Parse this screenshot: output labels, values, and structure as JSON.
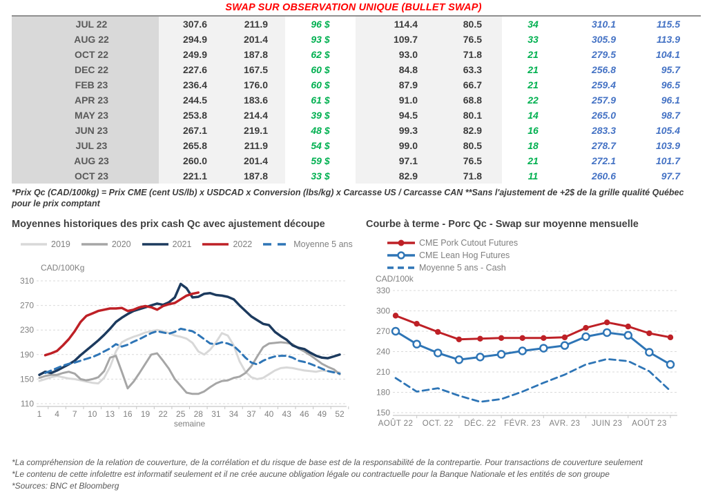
{
  "page": {
    "title": "SWAP SUR OBSERVATION UNIQUE (BULLET SWAP)"
  },
  "colors": {
    "title_red": "#FF0000",
    "green_text": "#00B050",
    "blue_text": "#4472C4",
    "label_col_bg": "#D9D9D9",
    "value_col_bg": "#F2F2F2"
  },
  "table": {
    "rows": [
      {
        "label": "JUL 22",
        "v1": "307.6",
        "v2": "211.9",
        "gain": "96 $",
        "v3": "114.4",
        "v4": "80.5",
        "count": "34",
        "b1": "310.1",
        "b2": "115.5"
      },
      {
        "label": "AUG 22",
        "v1": "294.9",
        "v2": "201.4",
        "gain": "93 $",
        "v3": "109.7",
        "v4": "76.5",
        "count": "33",
        "b1": "305.9",
        "b2": "113.9"
      },
      {
        "label": "OCT 22",
        "v1": "249.9",
        "v2": "187.8",
        "gain": "62 $",
        "v3": "93.0",
        "v4": "71.8",
        "count": "21",
        "b1": "279.5",
        "b2": "104.1"
      },
      {
        "label": "DEC 22",
        "v1": "227.6",
        "v2": "167.5",
        "gain": "60 $",
        "v3": "84.8",
        "v4": "63.3",
        "count": "21",
        "b1": "256.8",
        "b2": "95.7"
      },
      {
        "label": "FEB 23",
        "v1": "236.4",
        "v2": "176.0",
        "gain": "60 $",
        "v3": "87.9",
        "v4": "66.7",
        "count": "21",
        "b1": "259.4",
        "b2": "96.5"
      },
      {
        "label": "APR 23",
        "v1": "244.5",
        "v2": "183.6",
        "gain": "61 $",
        "v3": "91.0",
        "v4": "68.8",
        "count": "22",
        "b1": "257.9",
        "b2": "96.1"
      },
      {
        "label": "MAY 23",
        "v1": "253.8",
        "v2": "214.4",
        "gain": "39 $",
        "v3": "94.5",
        "v4": "80.1",
        "count": "14",
        "b1": "265.0",
        "b2": "98.7"
      },
      {
        "label": "JUN 23",
        "v1": "267.1",
        "v2": "219.1",
        "gain": "48 $",
        "v3": "99.3",
        "v4": "82.9",
        "count": "16",
        "b1": "283.3",
        "b2": "105.4"
      },
      {
        "label": "JUL 23",
        "v1": "265.8",
        "v2": "211.9",
        "gain": "54 $",
        "v3": "99.0",
        "v4": "80.5",
        "count": "18",
        "b1": "278.7",
        "b2": "103.9"
      },
      {
        "label": "AUG 23",
        "v1": "260.0",
        "v2": "201.4",
        "gain": "59 $",
        "v3": "97.1",
        "v4": "76.5",
        "count": "21",
        "b1": "272.1",
        "b2": "101.7"
      },
      {
        "label": "OCT 23",
        "v1": "221.1",
        "v2": "187.8",
        "gain": "33 $",
        "v3": "82.9",
        "v4": "71.8",
        "count": "11",
        "b1": "260.6",
        "b2": "97.7"
      }
    ],
    "footnote": "*Prix Qc (CAD/100kg) = Prix CME (cent US/lb) x USDCAD x Conversion (lbs/kg) x Carcasse US / Carcasse CAN **Sans l'ajustement de +2$ de la grille qualité Québec pour le prix comptant"
  },
  "chart_data": [
    {
      "type": "line",
      "title": "Moyennes historiques des prix cash Qc avec ajustement découpe",
      "ylabel": "CAD/100Kg",
      "xlabel": "semaine",
      "xlim": [
        1,
        52
      ],
      "ylim": [
        110,
        310
      ],
      "yticks": [
        110,
        150,
        190,
        230,
        270,
        310
      ],
      "x_ticks": [
        1,
        4,
        7,
        10,
        13,
        16,
        19,
        22,
        25,
        28,
        31,
        34,
        37,
        40,
        43,
        46,
        49,
        52
      ],
      "grid": "dashed-horizontal",
      "legend_position": "top",
      "series": [
        {
          "name": "2019",
          "color": "#D8D8D8",
          "style": "solid",
          "width": 3,
          "marker": "none",
          "values": [
            147,
            150,
            153,
            155,
            153,
            151,
            150,
            148,
            146,
            144,
            143,
            152,
            170,
            195,
            210,
            215,
            219,
            222,
            226,
            228,
            230,
            228,
            225,
            221,
            219,
            216,
            209,
            195,
            190,
            198,
            210,
            225,
            221,
            205,
            179,
            162,
            153,
            150,
            152,
            158,
            164,
            168,
            169,
            168,
            166,
            164,
            163,
            162,
            164,
            163,
            162,
            161
          ]
        },
        {
          "name": "2020",
          "color": "#A6A6A6",
          "style": "solid",
          "width": 3,
          "marker": "none",
          "values": [
            152,
            155,
            157,
            157,
            160,
            162,
            159,
            150,
            148,
            150,
            153,
            163,
            185,
            188,
            162,
            135,
            146,
            160,
            175,
            190,
            192,
            180,
            167,
            150,
            139,
            128,
            126,
            126,
            130,
            137,
            143,
            147,
            148,
            152,
            154,
            160,
            171,
            187,
            202,
            208,
            209,
            210,
            209,
            207,
            200,
            195,
            189,
            182,
            175,
            170,
            166,
            158
          ]
        },
        {
          "name": "2021",
          "color": "#1C3A5E",
          "style": "solid",
          "width": 3.5,
          "marker": "none",
          "values": [
            157,
            162,
            160,
            164,
            169,
            174,
            180,
            189,
            197,
            205,
            213,
            222,
            232,
            243,
            250,
            256,
            261,
            264,
            267,
            270,
            273,
            271,
            275,
            283,
            305,
            298,
            283,
            284,
            289,
            290,
            287,
            286,
            284,
            280,
            270,
            261,
            252,
            246,
            240,
            238,
            227,
            220,
            214,
            205,
            201,
            199,
            193,
            188,
            185,
            184,
            187,
            190
          ]
        },
        {
          "name": "2022",
          "color": "#BE2026",
          "style": "solid",
          "width": 3.5,
          "marker": "none",
          "values": [
            null,
            189,
            192,
            196,
            205,
            215,
            228,
            243,
            253,
            257,
            261,
            263,
            265,
            265,
            266,
            261,
            263,
            267,
            269,
            267,
            263,
            269,
            272,
            274,
            280,
            286,
            289,
            291,
            null,
            null,
            null,
            null,
            null,
            null,
            null,
            null,
            null,
            null,
            null,
            null,
            null,
            null,
            null,
            null,
            null,
            null,
            null,
            null,
            null,
            null,
            null,
            null
          ]
        },
        {
          "name": "Moyenne 5 ans",
          "color": "#2E75B6",
          "style": "dashed",
          "width": 3,
          "marker": "none",
          "values": [
            null,
            160,
            164,
            168,
            172,
            175,
            177,
            180,
            183,
            186,
            190,
            195,
            200,
            207,
            203,
            206,
            211,
            215,
            220,
            225,
            228,
            226,
            224,
            227,
            232,
            230,
            228,
            222,
            215,
            208,
            207,
            210,
            208,
            204,
            195,
            185,
            177,
            174,
            180,
            184,
            187,
            188,
            188,
            185,
            180,
            178,
            175,
            171,
            167,
            163,
            161,
            159
          ]
        }
      ]
    },
    {
      "type": "line",
      "title": "Courbe à terme - Porc Qc - Swap sur moyenne mensuelle",
      "ylabel": "CAD/100k",
      "xlabel": "",
      "ylim": [
        150,
        330
      ],
      "yticks": [
        150,
        180,
        210,
        240,
        270,
        300,
        330
      ],
      "n_points": 14,
      "x_tick_labels": [
        "AOÛT 22",
        "OCT. 22",
        "DÉC. 22",
        "FÉVR. 23",
        "AVR. 23",
        "JUIN 23",
        "AOÛT 23"
      ],
      "x_tick_every": 2,
      "grid": "dashed-horizontal",
      "legend_position": "top",
      "series": [
        {
          "name": "CME Pork Cutout Futures",
          "color": "#BE2026",
          "style": "solid",
          "width": 3,
          "marker": "filled",
          "values": [
            293,
            281,
            269,
            258,
            259,
            260,
            260,
            260,
            261,
            275,
            283,
            277,
            267,
            261
          ]
        },
        {
          "name": "CME Lean Hog Futures",
          "color": "#2E75B6",
          "style": "solid",
          "width": 3,
          "marker": "open",
          "values": [
            270,
            251,
            238,
            228,
            232,
            236,
            241,
            245,
            249,
            262,
            268,
            264,
            239,
            221
          ]
        },
        {
          "name": "Moyenne 5 ans - Cash",
          "color": "#2E75B6",
          "style": "dashed",
          "width": 2.8,
          "marker": "none",
          "values": [
            201,
            181,
            186,
            175,
            166,
            170,
            181,
            194,
            206,
            221,
            229,
            226,
            211,
            182
          ]
        }
      ]
    }
  ],
  "footer": {
    "lines": [
      "*La compréhension de la relation de couverture, de la corrélation et du risque de base est de la responsabilité de la contrepartie. Pour transactions de couverture seulement",
      "*Le contenu de cette infolettre est informatif seulement et il ne crée aucune obligation légale ou contractuelle pour la Banque Nationale et les entités de son groupe",
      "*Sources: BNC et Bloomberg"
    ]
  }
}
